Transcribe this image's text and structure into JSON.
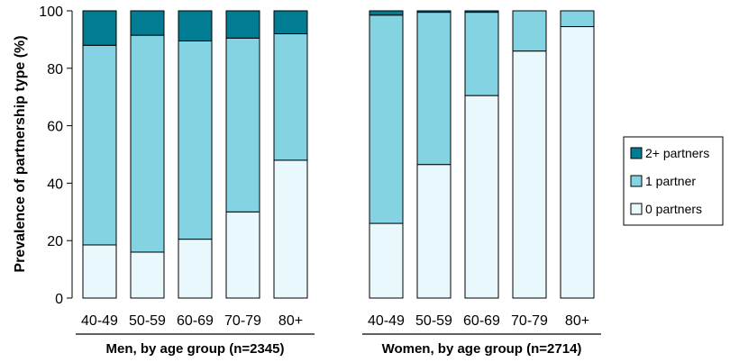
{
  "chart_data": {
    "type": "bar",
    "stacked": true,
    "ylabel": "Prevalence of partnership type (%)",
    "ylim": [
      0,
      100
    ],
    "yticks": [
      0,
      20,
      40,
      60,
      80,
      100
    ],
    "legend": {
      "placement": "right",
      "entries": [
        "2+ partners",
        "1 partner",
        "0 partners"
      ]
    },
    "colors": {
      "two_plus": "#027c93",
      "one": "#84d3e3",
      "zero": "#e8f8fc",
      "stroke": "#000000"
    },
    "groups": [
      {
        "label": "Men, by age group (n=2345)",
        "categories": [
          "40-49",
          "50-59",
          "60-69",
          "70-79",
          "80+"
        ],
        "series": [
          {
            "name": "0 partners",
            "values": [
              18.5,
              16,
              20.5,
              30,
              48
            ]
          },
          {
            "name": "1 partner",
            "values": [
              69.5,
              75.5,
              69,
              60.5,
              44
            ]
          },
          {
            "name": "2+ partners",
            "values": [
              12,
              8.5,
              10.5,
              9.5,
              8
            ]
          }
        ]
      },
      {
        "label": "Women, by age group (n=2714)",
        "categories": [
          "40-49",
          "50-59",
          "60-69",
          "70-79",
          "80+"
        ],
        "series": [
          {
            "name": "0 partners",
            "values": [
              26,
              46.5,
              70.5,
              86,
              94.5
            ]
          },
          {
            "name": "1 partner",
            "values": [
              72.5,
              53,
              29,
              14,
              5.5
            ]
          },
          {
            "name": "2+ partners",
            "values": [
              1.5,
              0.5,
              0.5,
              0,
              0
            ]
          }
        ]
      }
    ]
  }
}
